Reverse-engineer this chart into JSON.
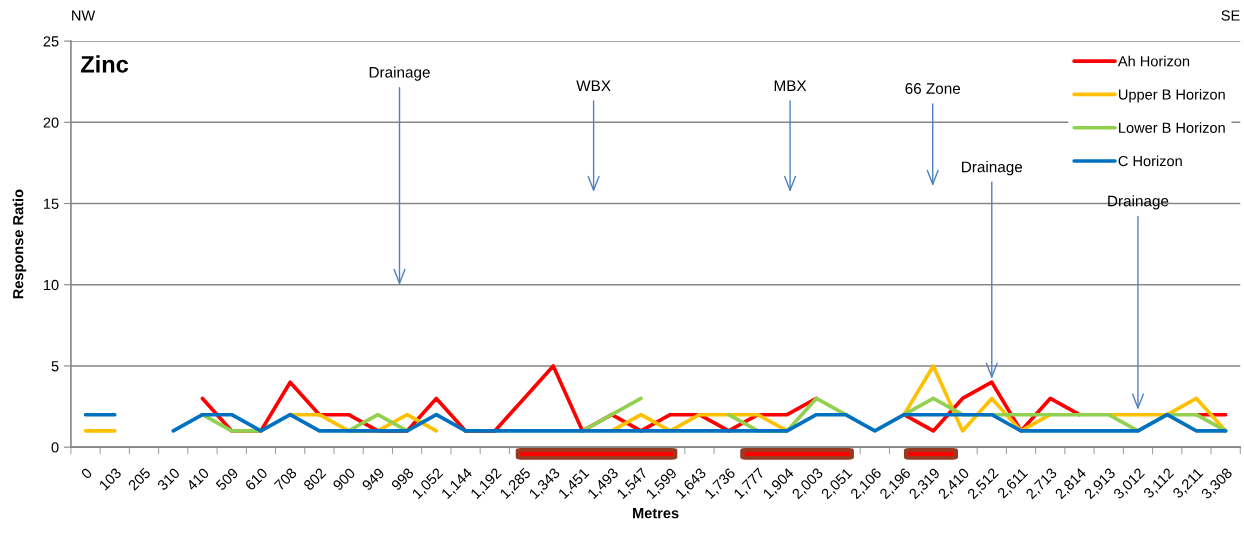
{
  "chart_data": {
    "type": "line",
    "title": "Zinc",
    "xlabel": "Metres",
    "ylabel": "Response Ratio",
    "categories": [
      "0",
      "103",
      "205",
      "310",
      "410",
      "509",
      "610",
      "708",
      "802",
      "900",
      "949",
      "998",
      "1,052",
      "1,144",
      "1,192",
      "1,285",
      "1,343",
      "1,451",
      "1,493",
      "1,547",
      "1,599",
      "1,643",
      "1,736",
      "1,777",
      "1,904",
      "2,003",
      "2,051",
      "2,106",
      "2,196",
      "2,319",
      "2,410",
      "2,512",
      "2,611",
      "2,713",
      "2,814",
      "2,913",
      "3,012",
      "3,112",
      "3,211",
      "3,308"
    ],
    "series": [
      {
        "name": "Ah Horizon",
        "color": "#ff0000",
        "values": [
          null,
          null,
          null,
          null,
          3,
          1,
          1,
          4,
          2,
          2,
          1,
          1,
          3,
          1,
          1,
          3,
          5,
          1,
          2,
          1,
          2,
          2,
          1,
          2,
          2,
          3,
          null,
          null,
          2,
          1,
          3,
          4,
          1,
          3,
          2,
          null,
          null,
          null,
          2,
          2
        ]
      },
      {
        "name": "Upper B Horizon",
        "color": "#ffc000",
        "values": [
          1,
          1,
          null,
          null,
          null,
          null,
          null,
          2,
          2,
          1,
          1,
          2,
          1,
          null,
          null,
          null,
          null,
          null,
          1,
          2,
          1,
          2,
          2,
          2,
          1,
          null,
          null,
          null,
          2,
          5,
          1,
          3,
          1,
          2,
          null,
          2,
          2,
          2,
          3,
          1
        ]
      },
      {
        "name": "Lower B Horizon",
        "color": "#92d050",
        "values": [
          null,
          null,
          null,
          null,
          2,
          1,
          1,
          null,
          null,
          1,
          2,
          1,
          null,
          null,
          null,
          null,
          null,
          1,
          2,
          3,
          null,
          null,
          2,
          1,
          1,
          3,
          2,
          null,
          2,
          3,
          2,
          2,
          2,
          2,
          2,
          2,
          1,
          2,
          2,
          1
        ]
      },
      {
        "name": "C Horizon",
        "color": "#0070c0",
        "values": [
          2,
          2,
          null,
          1,
          2,
          2,
          1,
          2,
          1,
          1,
          1,
          1,
          2,
          1,
          1,
          1,
          1,
          1,
          1,
          1,
          1,
          1,
          1,
          1,
          1,
          2,
          2,
          1,
          2,
          2,
          2,
          2,
          1,
          1,
          1,
          1,
          1,
          2,
          1,
          1
        ]
      }
    ],
    "ylim": [
      0,
      25
    ],
    "yticks": [
      0,
      5,
      10,
      15,
      20,
      25
    ],
    "grid": "y",
    "legend": "top right",
    "line_style": "solid",
    "annotations": [
      "NW",
      "SE",
      "Drainage",
      "WBX",
      "MBX",
      "66 Zone",
      {
        "text": "Drainage",
        "x": "2,512",
        "y": 4.2
      },
      {
        "text": "Drainage",
        "x": "3,012",
        "y": 2.3
      }
    ]
  }
}
